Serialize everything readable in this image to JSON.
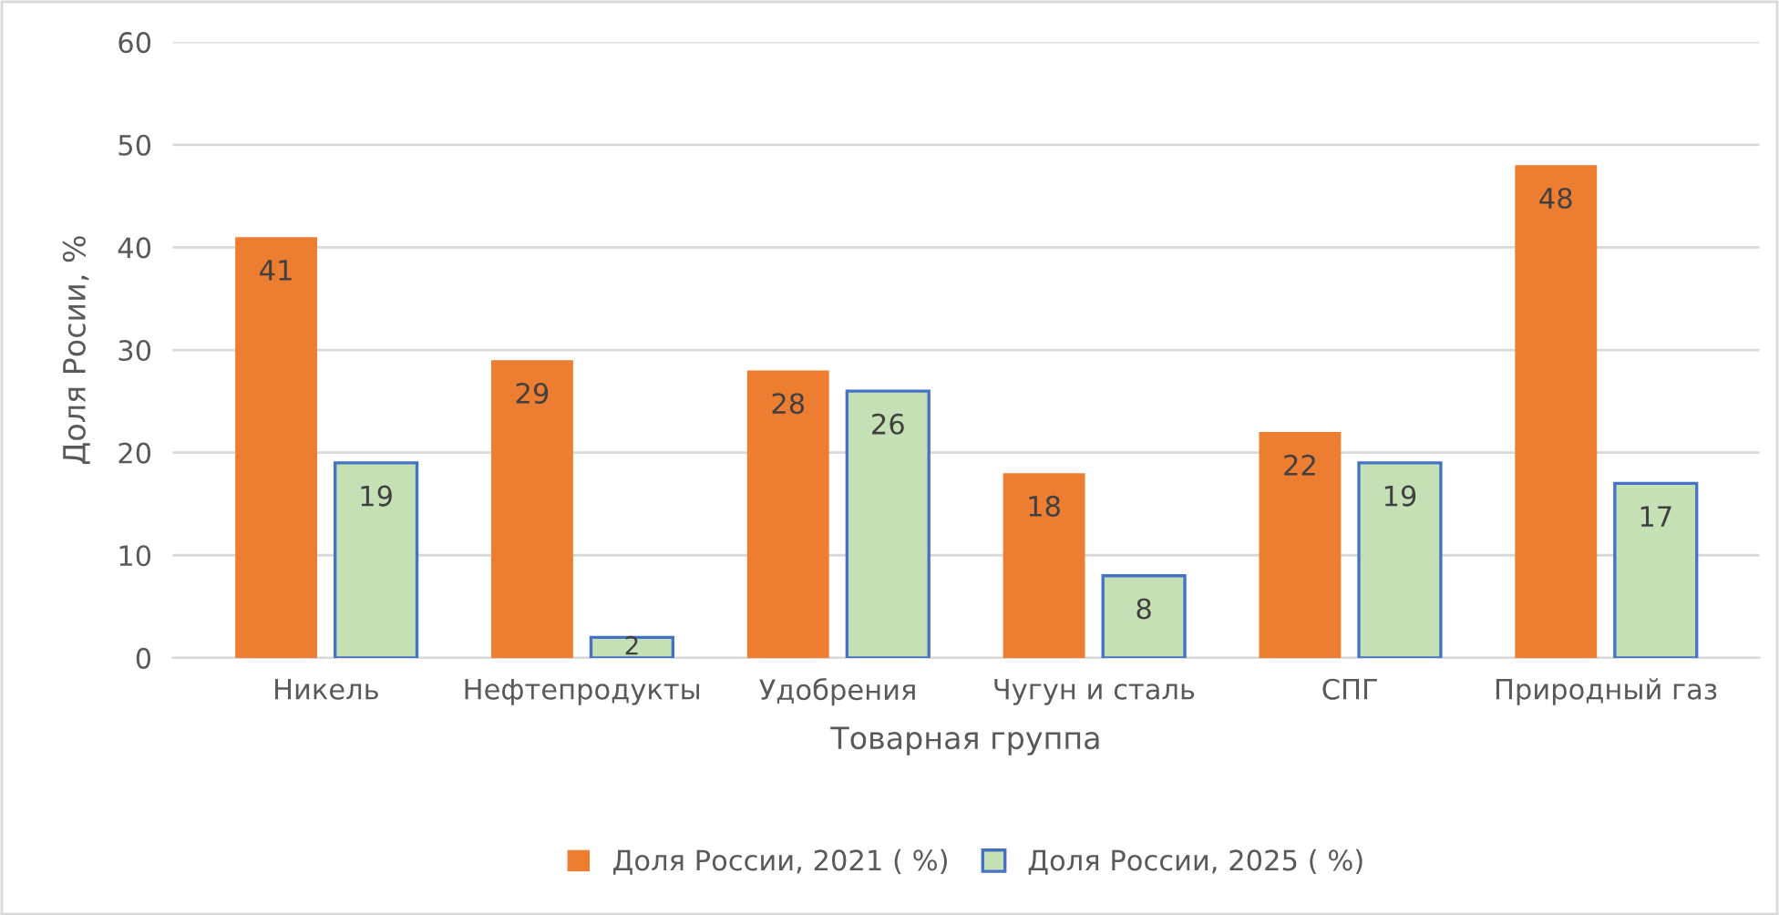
{
  "chart_data": {
    "type": "bar",
    "xlabel": "Товарная группа",
    "ylabel": "Доля Росии, %",
    "categories": [
      "Никель",
      "Нефтепродукты",
      "Удобрения",
      "Чугун и сталь",
      "СПГ",
      "Природный газ"
    ],
    "series": [
      {
        "name": "Доля России, 2021 ( %)",
        "color": "#ed7d31",
        "values": [
          41,
          29,
          28,
          18,
          22,
          48
        ]
      },
      {
        "name": "Доля России, 2025 ( %)",
        "color": "#c5e0b4",
        "values": [
          19,
          2,
          26,
          8,
          19,
          17
        ]
      }
    ],
    "ylim": [
      0,
      60
    ],
    "yticks": [
      0,
      10,
      20,
      30,
      40,
      50,
      60
    ],
    "grid": "y",
    "legend": "bottom",
    "data_labels": true
  }
}
